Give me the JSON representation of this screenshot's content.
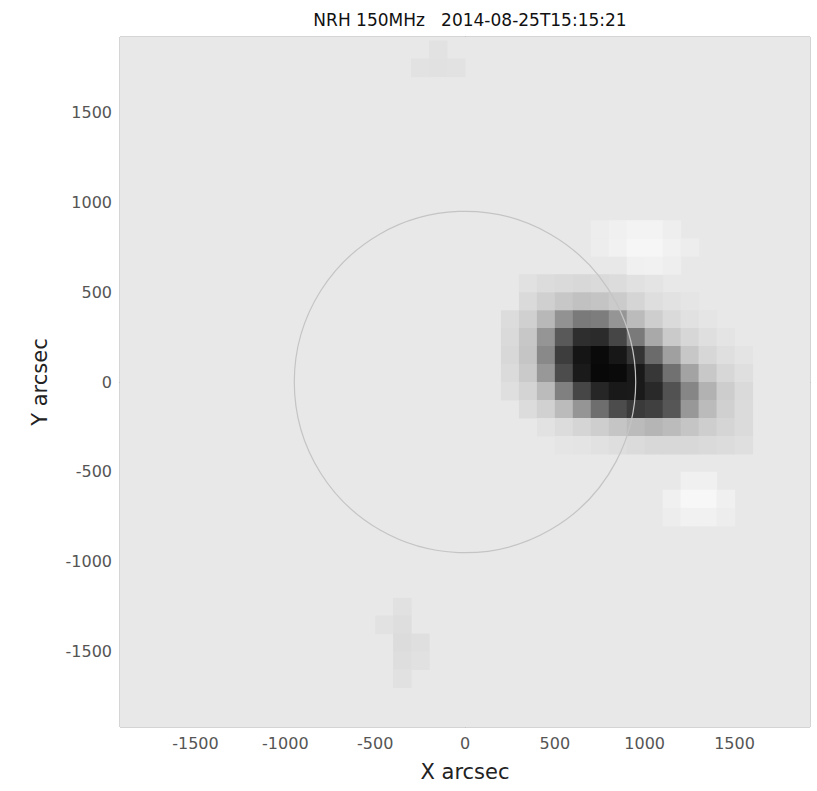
{
  "chart_data": {
    "type": "heatmap",
    "title": "NRH 150MHz   2014-08-25T15:15:21",
    "xlabel": "X arcsec",
    "ylabel": "Y arcsec",
    "xlim": [
      -1920,
      1920
    ],
    "ylim": [
      -1920,
      1920
    ],
    "xticks": [
      -1500,
      -1000,
      -500,
      0,
      500,
      1000,
      1500
    ],
    "yticks": [
      -1500,
      -1000,
      -500,
      0,
      500,
      1000,
      1500
    ],
    "grid": false,
    "cell_size": 100,
    "background_value": 0,
    "color_range": [
      -0.25,
      1
    ],
    "circle_center": [
      0,
      0
    ],
    "circle_radius": 950,
    "cells": [
      [
        350,
        550,
        0.05
      ],
      [
        450,
        550,
        0.08
      ],
      [
        550,
        550,
        0.1
      ],
      [
        650,
        550,
        0.11
      ],
      [
        750,
        550,
        0.1
      ],
      [
        850,
        550,
        0.08
      ],
      [
        950,
        550,
        0.05
      ],
      [
        1050,
        550,
        0.03
      ],
      [
        350,
        450,
        0.1
      ],
      [
        450,
        450,
        0.17
      ],
      [
        550,
        450,
        0.23
      ],
      [
        650,
        450,
        0.26
      ],
      [
        750,
        450,
        0.25
      ],
      [
        850,
        450,
        0.2
      ],
      [
        950,
        450,
        0.13
      ],
      [
        1050,
        450,
        0.07
      ],
      [
        1150,
        450,
        0.04
      ],
      [
        1250,
        450,
        0.02
      ],
      [
        250,
        350,
        0.08
      ],
      [
        350,
        350,
        0.17
      ],
      [
        450,
        350,
        0.29
      ],
      [
        550,
        350,
        0.42
      ],
      [
        650,
        350,
        0.5
      ],
      [
        750,
        350,
        0.49
      ],
      [
        850,
        350,
        0.41
      ],
      [
        950,
        350,
        0.28
      ],
      [
        1050,
        350,
        0.18
      ],
      [
        1150,
        350,
        0.1
      ],
      [
        1250,
        350,
        0.05
      ],
      [
        1350,
        350,
        0.02
      ],
      [
        250,
        250,
        0.1
      ],
      [
        350,
        250,
        0.23
      ],
      [
        450,
        250,
        0.41
      ],
      [
        550,
        250,
        0.61
      ],
      [
        650,
        250,
        0.75
      ],
      [
        750,
        250,
        0.77
      ],
      [
        850,
        250,
        0.67
      ],
      [
        950,
        250,
        0.5
      ],
      [
        1050,
        250,
        0.34
      ],
      [
        1150,
        250,
        0.21
      ],
      [
        1250,
        250,
        0.12
      ],
      [
        1350,
        250,
        0.06
      ],
      [
        1450,
        250,
        0.03
      ],
      [
        250,
        150,
        0.11
      ],
      [
        350,
        150,
        0.24
      ],
      [
        450,
        150,
        0.45
      ],
      [
        550,
        150,
        0.7
      ],
      [
        650,
        150,
        0.9
      ],
      [
        750,
        150,
        0.97
      ],
      [
        850,
        150,
        0.89
      ],
      [
        950,
        150,
        0.73
      ],
      [
        1050,
        150,
        0.55
      ],
      [
        1150,
        150,
        0.37
      ],
      [
        1250,
        150,
        0.23
      ],
      [
        1350,
        150,
        0.12
      ],
      [
        1450,
        150,
        0.06
      ],
      [
        1550,
        150,
        0.03
      ],
      [
        250,
        50,
        0.09
      ],
      [
        350,
        50,
        0.21
      ],
      [
        450,
        50,
        0.4
      ],
      [
        550,
        50,
        0.65
      ],
      [
        650,
        50,
        0.87
      ],
      [
        750,
        50,
        0.98
      ],
      [
        850,
        50,
        0.97
      ],
      [
        950,
        50,
        0.88
      ],
      [
        1050,
        50,
        0.72
      ],
      [
        1150,
        50,
        0.53
      ],
      [
        1250,
        50,
        0.36
      ],
      [
        1350,
        50,
        0.22
      ],
      [
        1450,
        50,
        0.12
      ],
      [
        1550,
        50,
        0.06
      ],
      [
        250,
        -50,
        0.06
      ],
      [
        350,
        -50,
        0.14
      ],
      [
        450,
        -50,
        0.28
      ],
      [
        550,
        -50,
        0.48
      ],
      [
        650,
        -50,
        0.67
      ],
      [
        750,
        -50,
        0.8
      ],
      [
        850,
        -50,
        0.88
      ],
      [
        950,
        -50,
        0.87
      ],
      [
        1050,
        -50,
        0.78
      ],
      [
        1150,
        -50,
        0.63
      ],
      [
        1250,
        -50,
        0.46
      ],
      [
        1350,
        -50,
        0.31
      ],
      [
        1450,
        -50,
        0.19
      ],
      [
        1550,
        -50,
        0.1
      ],
      [
        350,
        -150,
        0.08
      ],
      [
        450,
        -150,
        0.16
      ],
      [
        550,
        -150,
        0.28
      ],
      [
        650,
        -150,
        0.41
      ],
      [
        750,
        -150,
        0.54
      ],
      [
        850,
        -150,
        0.65
      ],
      [
        950,
        -150,
        0.71
      ],
      [
        1050,
        -150,
        0.69
      ],
      [
        1150,
        -150,
        0.62
      ],
      [
        1250,
        -150,
        0.4
      ],
      [
        1350,
        -150,
        0.28
      ],
      [
        1450,
        -150,
        0.17
      ],
      [
        1550,
        -150,
        0.09
      ],
      [
        450,
        -250,
        0.04
      ],
      [
        550,
        -250,
        0.08
      ],
      [
        650,
        -250,
        0.13
      ],
      [
        750,
        -250,
        0.18
      ],
      [
        850,
        -250,
        0.24
      ],
      [
        950,
        -250,
        0.28
      ],
      [
        1050,
        -250,
        0.3
      ],
      [
        1150,
        -250,
        0.28
      ],
      [
        1250,
        -250,
        0.24
      ],
      [
        1350,
        -250,
        0.18
      ],
      [
        1450,
        -250,
        0.13
      ],
      [
        1550,
        -250,
        0.09
      ],
      [
        550,
        -350,
        0.02
      ],
      [
        650,
        -350,
        0.03
      ],
      [
        750,
        -350,
        0.05
      ],
      [
        850,
        -350,
        0.07
      ],
      [
        950,
        -350,
        0.09
      ],
      [
        1050,
        -350,
        0.11
      ],
      [
        1150,
        -350,
        0.11
      ],
      [
        1250,
        -350,
        0.11
      ],
      [
        1350,
        -350,
        0.1
      ],
      [
        1450,
        -350,
        0.08
      ],
      [
        1550,
        -350,
        0.06
      ],
      [
        950,
        650,
        -0.1
      ],
      [
        1050,
        650,
        -0.12
      ],
      [
        1150,
        650,
        -0.08
      ],
      [
        750,
        750,
        -0.06
      ],
      [
        850,
        750,
        -0.12
      ],
      [
        950,
        750,
        -0.18
      ],
      [
        1050,
        750,
        -0.18
      ],
      [
        1150,
        750,
        -0.12
      ],
      [
        1250,
        750,
        -0.06
      ],
      [
        750,
        850,
        -0.06
      ],
      [
        850,
        850,
        -0.1
      ],
      [
        950,
        850,
        -0.15
      ],
      [
        1050,
        850,
        -0.14
      ],
      [
        1150,
        850,
        -0.08
      ],
      [
        1250,
        -550,
        -0.1
      ],
      [
        1350,
        -550,
        -0.1
      ],
      [
        1150,
        -650,
        -0.1
      ],
      [
        1250,
        -650,
        -0.2
      ],
      [
        1350,
        -650,
        -0.2
      ],
      [
        1450,
        -650,
        -0.1
      ],
      [
        1150,
        -750,
        -0.06
      ],
      [
        1250,
        -750,
        -0.12
      ],
      [
        1350,
        -750,
        -0.12
      ],
      [
        1450,
        -750,
        -0.06
      ],
      [
        -350,
        -1250,
        0.05
      ],
      [
        -450,
        -1350,
        0.04
      ],
      [
        -350,
        -1350,
        0.07
      ],
      [
        -350,
        -1450,
        0.08
      ],
      [
        -250,
        -1450,
        0.06
      ],
      [
        -350,
        -1550,
        0.07
      ],
      [
        -250,
        -1550,
        0.05
      ],
      [
        -350,
        -1650,
        0.05
      ],
      [
        -250,
        1750,
        0.04
      ],
      [
        -150,
        1750,
        0.05
      ],
      [
        -50,
        1750,
        0.04
      ],
      [
        -150,
        1850,
        0.04
      ]
    ]
  }
}
